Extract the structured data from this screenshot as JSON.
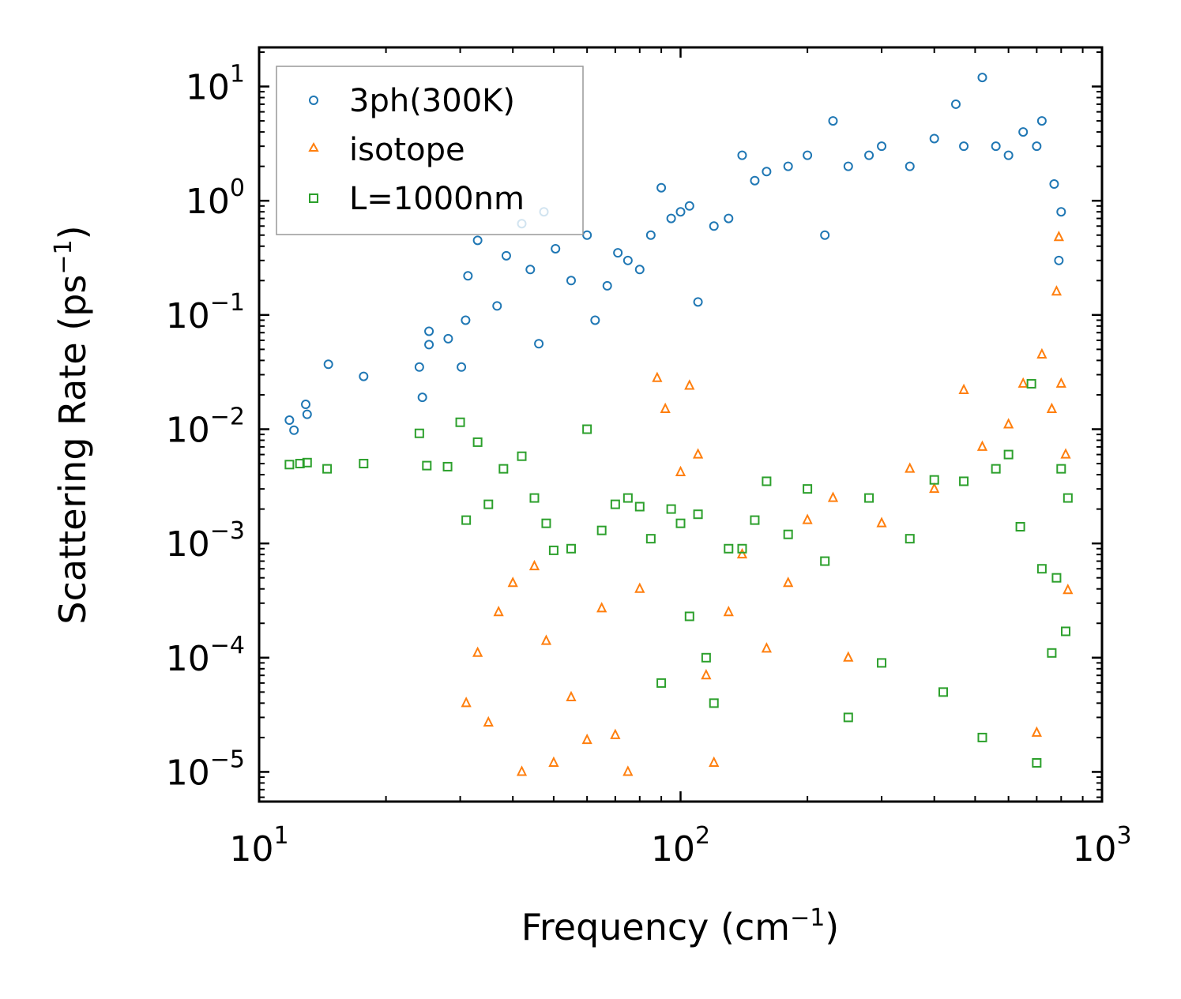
{
  "chart_data": {
    "type": "scatter",
    "title": "",
    "xlabel": "Frequency (cm",
    "xlabel_sup": "−1",
    "xlabel_end": ")",
    "ylabel": "Scattering Rate (ps",
    "ylabel_sup": "−1",
    "ylabel_end": ")",
    "xscale": "log",
    "yscale": "log",
    "xlim": [
      10,
      1000
    ],
    "ylim": [
      5.5e-06,
      22
    ],
    "x_ticks": [
      {
        "value": 10,
        "base": "10",
        "exp": "1"
      },
      {
        "value": 100,
        "base": "10",
        "exp": "2"
      },
      {
        "value": 1000,
        "base": "10",
        "exp": "3"
      }
    ],
    "y_ticks": [
      {
        "value": 10,
        "base": "10",
        "exp": "1"
      },
      {
        "value": 1,
        "base": "10",
        "exp": "0"
      },
      {
        "value": 0.1,
        "base": "10",
        "exp": "−1"
      },
      {
        "value": 0.01,
        "base": "10",
        "exp": "−2"
      },
      {
        "value": 0.001,
        "base": "10",
        "exp": "−3"
      },
      {
        "value": 0.0001,
        "base": "10",
        "exp": "−4"
      },
      {
        "value": 1e-05,
        "base": "10",
        "exp": "−5"
      }
    ],
    "legend_position": "top-left",
    "series": [
      {
        "name": "3ph(300K)",
        "marker": "circle",
        "color": "#1f77b4",
        "sample_points": [
          [
            11.8,
            0.012
          ],
          [
            12.1,
            0.0098
          ],
          [
            12.9,
            0.0165
          ],
          [
            13.0,
            0.0135
          ],
          [
            14.6,
            0.037
          ],
          [
            17.7,
            0.029
          ],
          [
            24.0,
            0.035
          ],
          [
            24.4,
            0.019
          ],
          [
            25.3,
            0.072
          ],
          [
            25.3,
            0.055
          ],
          [
            28.1,
            0.062
          ],
          [
            30.2,
            0.035
          ],
          [
            30.9,
            0.09
          ],
          [
            31.3,
            0.22
          ],
          [
            33.0,
            0.45
          ],
          [
            36.7,
            0.12
          ],
          [
            38.6,
            0.33
          ],
          [
            42.0,
            0.63
          ],
          [
            44.0,
            0.25
          ],
          [
            46.1,
            0.056
          ],
          [
            47.4,
            0.8
          ],
          [
            50.5,
            0.38
          ],
          [
            55.0,
            0.2
          ],
          [
            60.0,
            0.5
          ],
          [
            62.7,
            0.09
          ],
          [
            67.0,
            0.18
          ],
          [
            71.0,
            0.35
          ],
          [
            75.0,
            0.3
          ],
          [
            80.0,
            0.25
          ],
          [
            85.0,
            0.5
          ],
          [
            90.0,
            1.3
          ],
          [
            95.0,
            0.7
          ],
          [
            100.0,
            0.8
          ],
          [
            105.0,
            0.9
          ],
          [
            110.0,
            0.13
          ],
          [
            120.0,
            0.6
          ],
          [
            130.0,
            0.7
          ],
          [
            140.0,
            2.5
          ],
          [
            150.0,
            1.5
          ],
          [
            160.0,
            1.8
          ],
          [
            180.0,
            2.0
          ],
          [
            200.0,
            2.5
          ],
          [
            220.0,
            0.5
          ],
          [
            230.0,
            5.0
          ],
          [
            250.0,
            2.0
          ],
          [
            280.0,
            2.5
          ],
          [
            300.0,
            3.0
          ],
          [
            350.0,
            2.0
          ],
          [
            400.0,
            3.5
          ],
          [
            450.0,
            7.0
          ],
          [
            470.0,
            3.0
          ],
          [
            520.0,
            12.0
          ],
          [
            560.0,
            3.0
          ],
          [
            600.0,
            2.5
          ],
          [
            650.0,
            4.0
          ],
          [
            700.0,
            3.0
          ],
          [
            720.0,
            5.0
          ],
          [
            770.0,
            1.4
          ],
          [
            790.0,
            0.3
          ],
          [
            800.0,
            0.8
          ]
        ]
      },
      {
        "name": "isotope",
        "marker": "triangle",
        "color": "#ff7f0e",
        "sample_points": [
          [
            31.0,
            4e-05
          ],
          [
            33.0,
            0.00011
          ],
          [
            35.0,
            2.7e-05
          ],
          [
            37.0,
            0.00025
          ],
          [
            40.0,
            0.00045
          ],
          [
            42.0,
            1e-05
          ],
          [
            45.0,
            0.00063
          ],
          [
            48.0,
            0.00014
          ],
          [
            50.0,
            1.2e-05
          ],
          [
            55.0,
            4.5e-05
          ],
          [
            60.0,
            1.9e-05
          ],
          [
            65.0,
            0.00027
          ],
          [
            70.0,
            2.1e-05
          ],
          [
            75.0,
            1e-05
          ],
          [
            80.0,
            0.0004
          ],
          [
            88.0,
            0.028
          ],
          [
            92.0,
            0.015
          ],
          [
            100.0,
            0.0042
          ],
          [
            105.0,
            0.024
          ],
          [
            110.0,
            0.006
          ],
          [
            115.0,
            7e-05
          ],
          [
            120.0,
            1.2e-05
          ],
          [
            130.0,
            0.00025
          ],
          [
            140.0,
            0.0008
          ],
          [
            160.0,
            0.00012
          ],
          [
            180.0,
            0.00045
          ],
          [
            200.0,
            0.0016
          ],
          [
            230.0,
            0.0025
          ],
          [
            250.0,
            0.0001
          ],
          [
            300.0,
            0.0015
          ],
          [
            350.0,
            0.0045
          ],
          [
            400.0,
            0.003
          ],
          [
            470.0,
            0.022
          ],
          [
            520.0,
            0.007
          ],
          [
            600.0,
            0.011
          ],
          [
            650.0,
            0.025
          ],
          [
            700.0,
            2.2e-05
          ],
          [
            720.0,
            0.045
          ],
          [
            760.0,
            0.015
          ],
          [
            780.0,
            0.16
          ],
          [
            790.0,
            0.48
          ],
          [
            800.0,
            0.025
          ],
          [
            820.0,
            0.006
          ],
          [
            830.0,
            0.00039
          ]
        ]
      },
      {
        "name": "L=1000nm",
        "marker": "square",
        "color": "#2ca02c",
        "sample_points": [
          [
            11.8,
            0.0049
          ],
          [
            12.5,
            0.005
          ],
          [
            13.0,
            0.0051
          ],
          [
            14.5,
            0.0045
          ],
          [
            17.7,
            0.005
          ],
          [
            24.0,
            0.0092
          ],
          [
            25.0,
            0.0048
          ],
          [
            28.0,
            0.0047
          ],
          [
            30.0,
            0.0115
          ],
          [
            31.0,
            0.0016
          ],
          [
            33.0,
            0.0077
          ],
          [
            35.0,
            0.0022
          ],
          [
            38.0,
            0.0045
          ],
          [
            42.0,
            0.0058
          ],
          [
            45.0,
            0.0025
          ],
          [
            48.0,
            0.0015
          ],
          [
            50.0,
            0.00087
          ],
          [
            55.0,
            0.0009
          ],
          [
            60.0,
            0.01
          ],
          [
            65.0,
            0.0013
          ],
          [
            70.0,
            0.0022
          ],
          [
            75.0,
            0.0025
          ],
          [
            80.0,
            0.0021
          ],
          [
            85.0,
            0.0011
          ],
          [
            90.0,
            6e-05
          ],
          [
            95.0,
            0.002
          ],
          [
            100.0,
            0.0015
          ],
          [
            105.0,
            0.00023
          ],
          [
            110.0,
            0.0018
          ],
          [
            115.0,
            0.0001
          ],
          [
            120.0,
            4e-05
          ],
          [
            130.0,
            0.0009
          ],
          [
            140.0,
            0.0009
          ],
          [
            150.0,
            0.0016
          ],
          [
            160.0,
            0.0035
          ],
          [
            180.0,
            0.0012
          ],
          [
            200.0,
            0.003
          ],
          [
            220.0,
            0.0007
          ],
          [
            250.0,
            3e-05
          ],
          [
            280.0,
            0.0025
          ],
          [
            300.0,
            9e-05
          ],
          [
            350.0,
            0.0011
          ],
          [
            400.0,
            0.0036
          ],
          [
            420.0,
            5e-05
          ],
          [
            470.0,
            0.0035
          ],
          [
            520.0,
            2e-05
          ],
          [
            560.0,
            0.0045
          ],
          [
            600.0,
            0.006
          ],
          [
            640.0,
            0.0014
          ],
          [
            680.0,
            0.025
          ],
          [
            700.0,
            1.2e-05
          ],
          [
            720.0,
            0.0006
          ],
          [
            760.0,
            0.00011
          ],
          [
            780.0,
            0.0005
          ],
          [
            800.0,
            0.0045
          ],
          [
            820.0,
            0.00017
          ],
          [
            830.0,
            0.0025
          ]
        ]
      }
    ]
  }
}
